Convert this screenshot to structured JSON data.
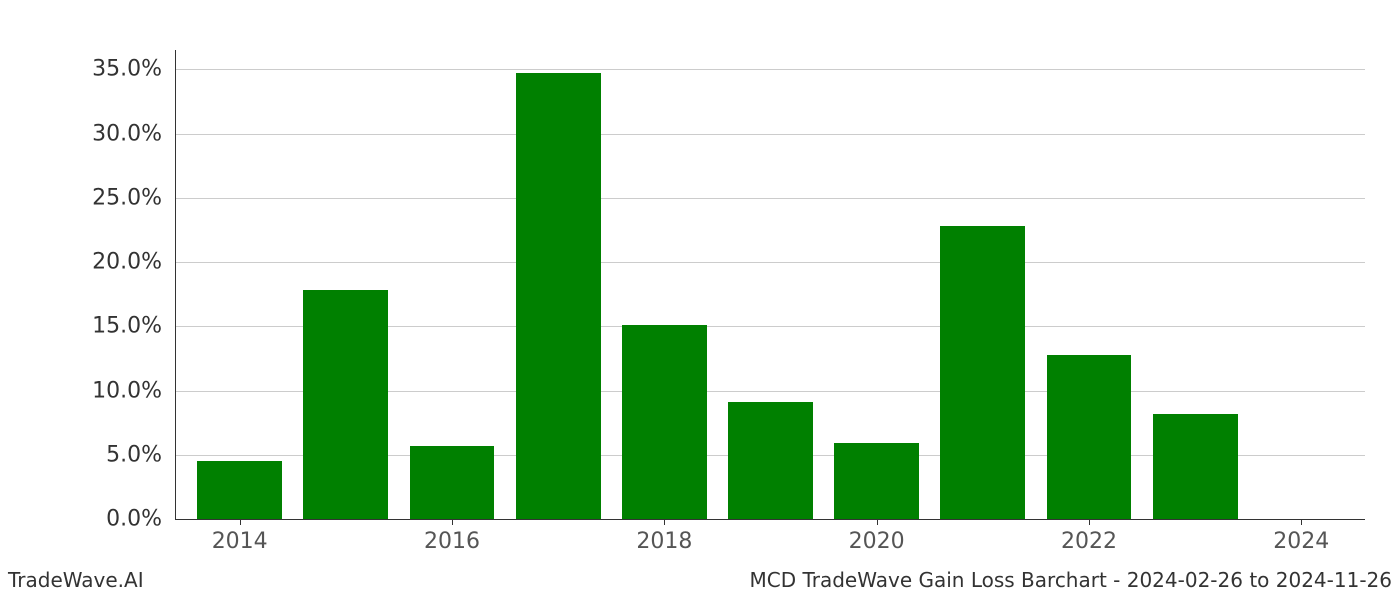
{
  "chart": {
    "type": "bar",
    "years": [
      2014,
      2015,
      2016,
      2017,
      2018,
      2019,
      2020,
      2021,
      2022,
      2023,
      2024
    ],
    "values": [
      4.5,
      17.8,
      5.7,
      34.7,
      15.1,
      9.1,
      5.9,
      22.8,
      12.8,
      8.2,
      0.0
    ],
    "bar_color": "#008000",
    "x_range_min": 2013.4,
    "x_range_max": 2024.6,
    "ymin": 0,
    "ymax": 36.5,
    "ytick_step": 5,
    "ytick_suffix": ".0%",
    "xtick_years": [
      2014,
      2016,
      2018,
      2020,
      2022,
      2024
    ],
    "bar_width_years": 0.8,
    "grid_color": "#cccccc",
    "axis_color": "#333333",
    "tick_font_size": 22,
    "tick_color": "#555555",
    "background": "#ffffff"
  },
  "footer": {
    "left": "TradeWave.AI",
    "right": "MCD TradeWave Gain Loss Barchart - 2024-02-26 to 2024-11-26"
  }
}
